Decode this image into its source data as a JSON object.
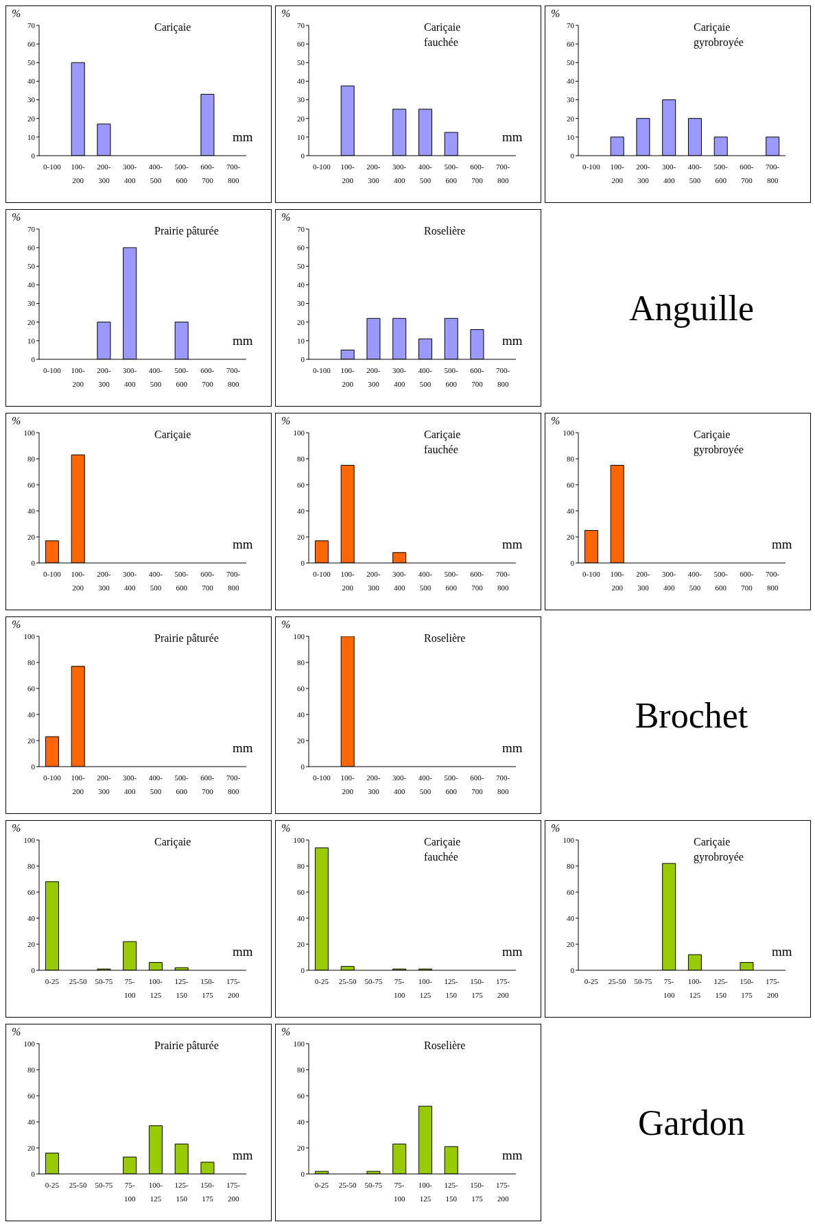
{
  "chart_data": [
    {
      "type": "bar",
      "title": "Cariçaie",
      "ylabel": "%",
      "xlabel": "mm",
      "categories": [
        "0-100",
        "100-200",
        "200-300",
        "300-400",
        "400-500",
        "500-600",
        "600-700",
        "700-800"
      ],
      "values": [
        0,
        50,
        17,
        0,
        0,
        0,
        33,
        0
      ],
      "color": "#9999ff",
      "ylim": [
        0,
        70
      ],
      "yticks": [
        0,
        10,
        20,
        30,
        40,
        50,
        60,
        70
      ]
    },
    {
      "type": "bar",
      "title": "Cariçaie fauchée",
      "ylabel": "%",
      "xlabel": "mm",
      "categories": [
        "0-100",
        "100-200",
        "200-300",
        "300-400",
        "400-500",
        "500-600",
        "600-700",
        "700-800"
      ],
      "values": [
        0,
        37.5,
        0,
        25,
        25,
        12.5,
        0,
        0
      ],
      "color": "#9999ff",
      "ylim": [
        0,
        70
      ],
      "yticks": [
        0,
        10,
        20,
        30,
        40,
        50,
        60,
        70
      ]
    },
    {
      "type": "bar",
      "title": "Cariçaie gyrobroyée",
      "ylabel": "%",
      "categories": [
        "0-100",
        "100-200",
        "200-300",
        "300-400",
        "400-500",
        "500-600",
        "600-700",
        "700-800"
      ],
      "values": [
        0,
        10,
        20,
        30,
        20,
        10,
        0,
        10
      ],
      "color": "#9999ff",
      "ylim": [
        0,
        70
      ],
      "yticks": [
        0,
        10,
        20,
        30,
        40,
        50,
        60,
        70
      ]
    },
    {
      "type": "bar",
      "title": "Prairie pâturée",
      "ylabel": "%",
      "xlabel": "mm",
      "categories": [
        "0-100",
        "100-200",
        "200-300",
        "300-400",
        "400-500",
        "500-600",
        "600-700",
        "700-800"
      ],
      "values": [
        0,
        0,
        20,
        60,
        0,
        20,
        0,
        0
      ],
      "color": "#9999ff",
      "ylim": [
        0,
        70
      ],
      "yticks": [
        0,
        10,
        20,
        30,
        40,
        50,
        60,
        70
      ]
    },
    {
      "type": "bar",
      "title": "Roselière",
      "ylabel": "%",
      "xlabel": "mm",
      "categories": [
        "0-100",
        "100-200",
        "200-300",
        "300-400",
        "400-500",
        "500-600",
        "600-700",
        "700-800"
      ],
      "values": [
        0,
        5,
        22,
        22,
        11,
        22,
        16,
        0
      ],
      "color": "#9999ff",
      "ylim": [
        0,
        70
      ],
      "yticks": [
        0,
        10,
        20,
        30,
        40,
        50,
        60,
        70
      ]
    },
    {
      "type": "other",
      "title": "Anguille"
    },
    {
      "type": "bar",
      "title": "Cariçaie",
      "ylabel": "%",
      "xlabel": "mm",
      "categories": [
        "0-100",
        "100-200",
        "200-300",
        "300-400",
        "400-500",
        "500-600",
        "600-700",
        "700-800"
      ],
      "values": [
        17,
        83,
        0,
        0,
        0,
        0,
        0,
        0
      ],
      "color": "#ff6600",
      "ylim": [
        0,
        100
      ],
      "yticks": [
        0,
        20,
        40,
        60,
        80,
        100
      ]
    },
    {
      "type": "bar",
      "title": "Cariçaie fauchée",
      "ylabel": "%",
      "xlabel": "mm",
      "categories": [
        "0-100",
        "100-200",
        "200-300",
        "300-400",
        "400-500",
        "500-600",
        "600-700",
        "700-800"
      ],
      "values": [
        17,
        75,
        0,
        8,
        0,
        0,
        0,
        0
      ],
      "color": "#ff6600",
      "ylim": [
        0,
        100
      ],
      "yticks": [
        0,
        20,
        40,
        60,
        80,
        100
      ]
    },
    {
      "type": "bar",
      "title": "Cariçaie gyrobroyée",
      "ylabel": "%",
      "xlabel": "mm",
      "categories": [
        "0-100",
        "100-200",
        "200-300",
        "300-400",
        "400-500",
        "500-600",
        "600-700",
        "700-800"
      ],
      "values": [
        25,
        75,
        0,
        0,
        0,
        0,
        0,
        0
      ],
      "color": "#ff6600",
      "ylim": [
        0,
        100
      ],
      "yticks": [
        0,
        20,
        40,
        60,
        80,
        100
      ]
    },
    {
      "type": "bar",
      "title": "Prairie pâturée",
      "ylabel": "%",
      "xlabel": "mm",
      "categories": [
        "0-100",
        "100-200",
        "200-300",
        "300-400",
        "400-500",
        "500-600",
        "600-700",
        "700-800"
      ],
      "values": [
        23,
        77,
        0,
        0,
        0,
        0,
        0,
        0
      ],
      "color": "#ff6600",
      "ylim": [
        0,
        100
      ],
      "yticks": [
        0,
        20,
        40,
        60,
        80,
        100
      ]
    },
    {
      "type": "bar",
      "title": "Roselière",
      "ylabel": "%",
      "xlabel": "mm",
      "categories": [
        "0-100",
        "100-200",
        "200-300",
        "300-400",
        "400-500",
        "500-600",
        "600-700",
        "700-800"
      ],
      "values": [
        0,
        100,
        0,
        0,
        0,
        0,
        0,
        0
      ],
      "color": "#ff6600",
      "ylim": [
        0,
        100
      ],
      "yticks": [
        0,
        20,
        40,
        60,
        80,
        100
      ]
    },
    {
      "type": "other",
      "title": "Brochet"
    },
    {
      "type": "bar",
      "title": "Cariçaie",
      "ylabel": "%",
      "xlabel": "mm",
      "categories": [
        "0-25",
        "25-50",
        "50-75",
        "75-100",
        "100-125",
        "125-150",
        "150-175",
        "175-200"
      ],
      "values": [
        68,
        0,
        1,
        22,
        6,
        2,
        0,
        0
      ],
      "color": "#99cc00",
      "ylim": [
        0,
        100
      ],
      "yticks": [
        0,
        20,
        40,
        60,
        80,
        100
      ]
    },
    {
      "type": "bar",
      "title": "Cariçaie fauchée",
      "ylabel": "%",
      "xlabel": "mm",
      "categories": [
        "0-25",
        "25-50",
        "50-75",
        "75-100",
        "100-125",
        "125-150",
        "150-175",
        "175-200"
      ],
      "values": [
        94,
        3,
        0,
        1,
        1,
        0,
        0,
        0
      ],
      "color": "#99cc00",
      "ylim": [
        0,
        100
      ],
      "yticks": [
        0,
        20,
        40,
        60,
        80,
        100
      ]
    },
    {
      "type": "bar",
      "title": "Cariçaie gyrobroyée",
      "ylabel": "%",
      "xlabel": "mm",
      "categories": [
        "0-25",
        "25-50",
        "50-75",
        "75-100",
        "100-125",
        "125-150",
        "150-175",
        "175-200"
      ],
      "values": [
        0,
        0,
        0,
        82,
        12,
        0,
        6,
        0
      ],
      "color": "#99cc00",
      "ylim": [
        0,
        100
      ],
      "yticks": [
        0,
        20,
        40,
        60,
        80,
        100
      ]
    },
    {
      "type": "bar",
      "title": "Prairie pâturée",
      "ylabel": "%",
      "xlabel": "mm",
      "categories": [
        "0-25",
        "25-50",
        "50-75",
        "75-100",
        "100-125",
        "125-150",
        "150-175",
        "175-200"
      ],
      "values": [
        16,
        0,
        0,
        13,
        37,
        23,
        9,
        0
      ],
      "color": "#99cc00",
      "ylim": [
        0,
        100
      ],
      "yticks": [
        0,
        20,
        40,
        60,
        80,
        100
      ]
    },
    {
      "type": "bar",
      "title": "Roselière",
      "ylabel": "%",
      "xlabel": "mm",
      "categories": [
        "0-25",
        "25-50",
        "50-75",
        "75-100",
        "100-125",
        "125-150",
        "150-175",
        "175-200"
      ],
      "values": [
        2,
        0,
        2,
        23,
        52,
        21,
        0,
        0
      ],
      "color": "#99cc00",
      "ylim": [
        0,
        100
      ],
      "yticks": [
        0,
        20,
        40,
        60,
        80,
        100
      ]
    },
    {
      "type": "other",
      "title": "Gardon"
    }
  ]
}
